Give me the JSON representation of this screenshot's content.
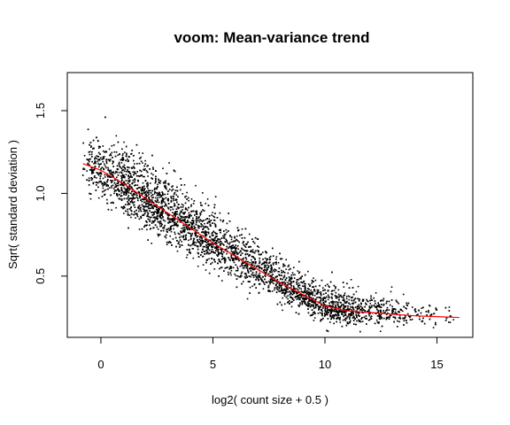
{
  "chart_data": {
    "type": "scatter",
    "title": "voom: Mean-variance trend",
    "xlabel": "log2( count size + 0.5 )",
    "ylabel": "Sqrt( standard deviation )",
    "xlim": [
      -1.5,
      16.6
    ],
    "ylim": [
      0.13,
      1.73
    ],
    "x_ticks": [
      0,
      5,
      10,
      15
    ],
    "x_tick_labels": [
      "0",
      "5",
      "10",
      "15"
    ],
    "y_ticks": [
      0.5,
      1.0,
      1.5
    ],
    "y_tick_labels": [
      "0.5",
      "1.0",
      "1.5"
    ],
    "grid": false,
    "legend": "none",
    "point_color": "#000000",
    "trend_color": "#ff0000",
    "trend": {
      "x": [
        -0.8,
        0,
        1,
        2,
        3,
        4,
        5,
        6,
        7,
        8,
        9,
        10,
        11,
        12,
        13,
        14,
        15,
        16
      ],
      "y": [
        1.18,
        1.14,
        1.06,
        0.97,
        0.88,
        0.79,
        0.7,
        0.62,
        0.54,
        0.46,
        0.39,
        0.32,
        0.29,
        0.28,
        0.27,
        0.26,
        0.255,
        0.25
      ]
    },
    "scatter_density": {
      "x": [
        -0.8,
        0,
        1,
        2,
        3,
        4,
        5,
        6,
        7,
        8,
        9,
        10,
        11,
        12,
        13,
        14,
        15,
        16
      ],
      "weight": [
        0.2,
        0.6,
        0.9,
        1.0,
        0.95,
        0.85,
        0.75,
        0.65,
        0.6,
        0.62,
        0.7,
        0.75,
        0.6,
        0.4,
        0.25,
        0.12,
        0.05,
        0.02
      ],
      "spread": [
        0.14,
        0.14,
        0.15,
        0.15,
        0.15,
        0.14,
        0.13,
        0.12,
        0.11,
        0.1,
        0.09,
        0.08,
        0.08,
        0.07,
        0.07,
        0.06,
        0.06,
        0.06
      ]
    }
  }
}
